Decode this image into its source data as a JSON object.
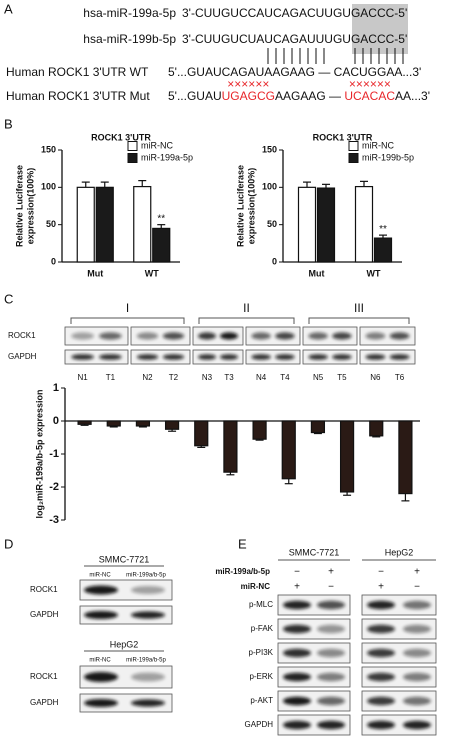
{
  "panel_labels": [
    "A",
    "B",
    "C",
    "D",
    "E"
  ],
  "sequences": {
    "rows": [
      {
        "label": "hsa-miR-199a-5p",
        "parts": [
          "3'-CUUGUCCAUCAGACUUGUGACCC-5'"
        ]
      },
      {
        "label": "hsa-miR-199b-5p",
        "parts": [
          "3'-CUUGUCUAUCAGAUUUGUGACCC-5'"
        ]
      },
      {
        "label": "Human ROCK1 3'UTR WT",
        "parts": [
          "5'...GUAUCAGAUAAGAAG — CACUGGAA...3'"
        ]
      },
      {
        "label": "Human ROCK1 3'UTR Mut",
        "parts": [
          "5'...GUAU",
          "UGAGCG",
          "AAGAAG — ",
          "UCACAC",
          "AA...3'"
        ]
      }
    ],
    "crosses": [
      "××××××",
      "××××××"
    ],
    "highlight_color": "#e8262a"
  },
  "chart_data": [
    {
      "type": "bar",
      "title": "ROCK1 3'UTR",
      "ylabel": [
        "Relative Luciferase",
        "expression(100%)"
      ],
      "categories": [
        "Mut",
        "WT"
      ],
      "series": [
        {
          "name": "miR-NC",
          "color": "#ffffff",
          "values": [
            100,
            101
          ],
          "errors": [
            7,
            8
          ]
        },
        {
          "name": "miR-199a-5p",
          "color": "#1a1a1a",
          "values": [
            100,
            45
          ],
          "errors": [
            7,
            5
          ]
        }
      ],
      "ylim": [
        0,
        150
      ],
      "yticks": [
        0,
        50,
        100,
        150
      ],
      "annotation": "**"
    },
    {
      "type": "bar",
      "title": "ROCK1 3'UTR",
      "ylabel": [
        "Relative Luciferase",
        "expression(100%)"
      ],
      "categories": [
        "Mut",
        "WT"
      ],
      "series": [
        {
          "name": "miR-NC",
          "color": "#ffffff",
          "values": [
            100,
            101
          ],
          "errors": [
            7,
            7
          ]
        },
        {
          "name": "miR-199b-5p",
          "color": "#1a1a1a",
          "values": [
            99,
            32
          ],
          "errors": [
            5,
            4
          ]
        }
      ],
      "ylim": [
        0,
        150
      ],
      "yticks": [
        0,
        50,
        100,
        150
      ],
      "annotation": "**"
    },
    {
      "type": "bar",
      "ylabel": [
        "log₂miR-199a/b-5p expression"
      ],
      "categories": [
        null,
        null,
        null,
        null,
        null,
        null,
        null,
        null,
        null,
        null,
        null,
        null
      ],
      "series": [
        {
          "color": "#2a1a15",
          "values": [
            -0.1,
            -0.15,
            -0.15,
            -0.25,
            -0.75,
            -1.55,
            -0.55,
            -1.75,
            -0.35,
            -2.15,
            -0.45,
            -2.2
          ],
          "errors": [
            0.03,
            0.03,
            0.03,
            0.06,
            0.05,
            0.08,
            0.03,
            0.15,
            0.03,
            0.1,
            0.03,
            0.22
          ]
        }
      ],
      "ylim": [
        -3,
        1
      ],
      "yticks": [
        -3,
        -2,
        -1,
        0,
        1
      ]
    }
  ],
  "blots_c": {
    "groups": [
      "I",
      "II",
      "III"
    ],
    "rows": [
      "ROCK1",
      "GAPDH"
    ],
    "lanes": [
      "N1",
      "T1",
      "N2",
      "T2",
      "N3",
      "T3",
      "N4",
      "T4",
      "N5",
      "T5",
      "N6",
      "T6"
    ]
  },
  "blot_d": {
    "panels": [
      {
        "title": "SMMC-7721",
        "lanes": [
          "miR-NC",
          "miR-199a/b-5p"
        ],
        "rows": [
          "ROCK1",
          "GAPDH"
        ]
      },
      {
        "title": "HepG2",
        "lanes": [
          "miR-NC",
          "miR-199a/b-5p"
        ],
        "rows": [
          "ROCK1",
          "GAPDH"
        ]
      }
    ]
  },
  "blot_e": {
    "cell_lines": [
      "SMMC-7721",
      "HepG2"
    ],
    "treatments": [
      {
        "label": "miR-199a/b-5p",
        "marks": [
          "−",
          "+",
          "−",
          "+"
        ]
      },
      {
        "label": "miR-NC",
        "marks": [
          "+",
          "−",
          "+",
          "−"
        ]
      }
    ],
    "rows": [
      "p-MLC",
      "p-FAK",
      "p-PI3K",
      "p-ERK",
      "p-AKT",
      "GAPDH"
    ]
  }
}
